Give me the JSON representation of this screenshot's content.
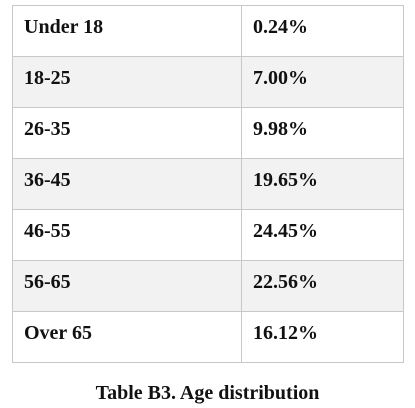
{
  "table": {
    "rows": [
      [
        "Under 18",
        "0.24%"
      ],
      [
        "18-25",
        "7.00%"
      ],
      [
        "26-35",
        "9.98%"
      ],
      [
        "36-45",
        "19.65%"
      ],
      [
        "46-55",
        "24.45%"
      ],
      [
        "56-65",
        "22.56%"
      ],
      [
        "Over 65",
        "16.12%"
      ]
    ]
  },
  "caption": "Table B3. Age distribution"
}
